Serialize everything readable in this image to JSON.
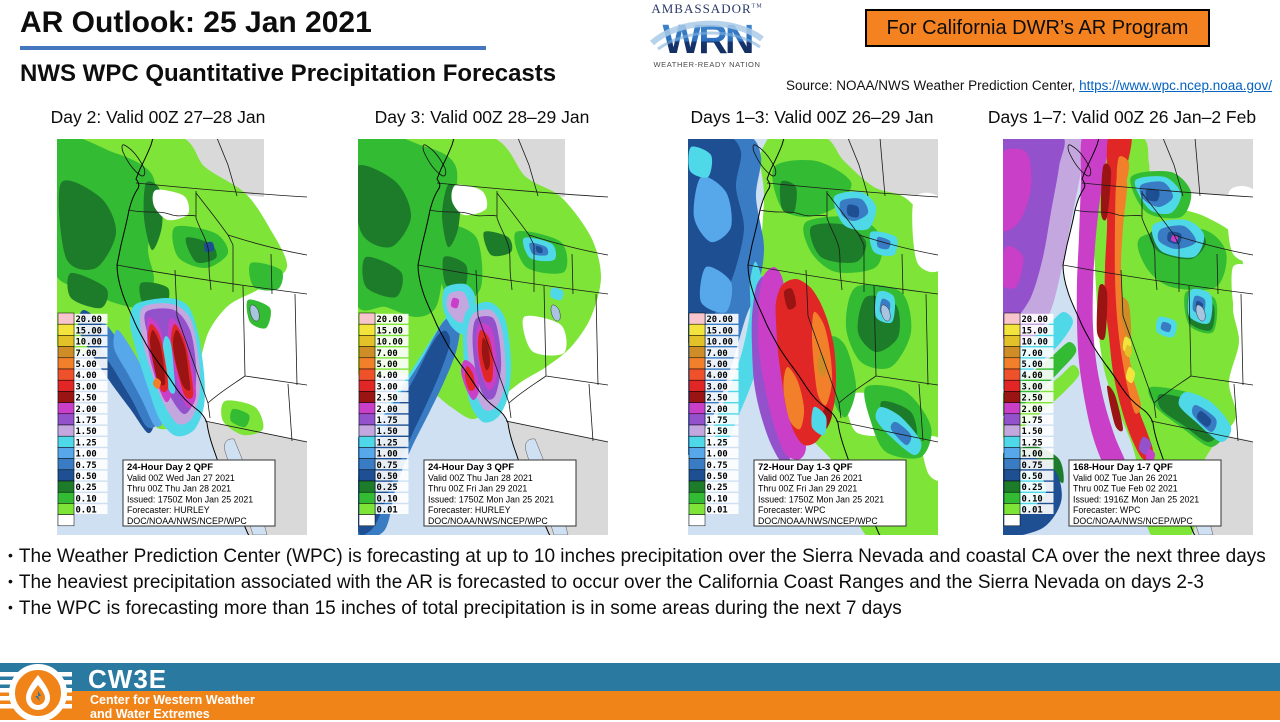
{
  "slide": {
    "title": "AR Outlook: 25 Jan 2021",
    "subtitle": "NWS WPC Quantitative Precipitation Forecasts",
    "badge": "For California DWR’s AR Program",
    "source_prefix": "Source: NOAA/NWS Weather Prediction Center, ",
    "source_link": "https://www.wpc.ncep.noaa.gov/",
    "accent_underline": "#4577BE",
    "badge_bg": "#F58220"
  },
  "wrn_logo": {
    "top": "AMBASSADOR",
    "tm": "TM",
    "mark": "WRN",
    "bottom": "WEATHER-READY NATION"
  },
  "panels": [
    {
      "label": "Day 2: Valid 00Z 27–28 Jan",
      "info": [
        "24-Hour Day 2 QPF",
        "Valid 00Z Wed Jan 27 2021",
        "Thru 00Z Thu Jan 28 2021",
        "Issued: 1750Z Mon Jan 25 2021",
        "Forecaster: HURLEY",
        "DOC/NOAA/NWS/NCEP/WPC"
      ]
    },
    {
      "label": "Day 3: Valid 00Z 28–29 Jan",
      "info": [
        "24-Hour Day 3 QPF",
        "Valid 00Z Thu Jan 28 2021",
        "Thru 00Z Fri Jan 29 2021",
        "Issued: 1750Z Mon Jan 25 2021",
        "Forecaster: HURLEY",
        "DOC/NOAA/NWS/NCEP/WPC"
      ]
    },
    {
      "label": "Days 1–3: Valid 00Z 26–29 Jan",
      "info": [
        "72-Hour Day 1-3 QPF",
        "Valid 00Z Tue Jan 26 2021",
        "Thru 00Z Fri Jan 29 2021",
        "Issued: 1750Z Mon Jan 25 2021",
        "Forecaster: WPC",
        "DOC/NOAA/NWS/NCEP/WPC"
      ]
    },
    {
      "label": "Days 1–7: Valid 00Z 26 Jan–2 Feb",
      "info": [
        "168-Hour Day 1-7 QPF",
        "Valid 00Z Tue Jan 26 2021",
        "Thru 00Z Tue Feb 02 2021",
        "Issued: 1916Z Mon Jan 25 2021",
        "Forecaster: WPC",
        "DOC/NOAA/NWS/NCEP/WPC"
      ]
    }
  ],
  "legend": {
    "values": [
      "20.00",
      "15.00",
      "10.00",
      "7.00",
      "5.00",
      "4.00",
      "3.00",
      "2.50",
      "2.00",
      "1.75",
      "1.50",
      "1.25",
      "1.00",
      "0.75",
      "0.50",
      "0.25",
      "0.10",
      "0.01"
    ],
    "colors": [
      "#F7C5CB",
      "#F2E43C",
      "#E2C228",
      "#CE8D26",
      "#F2802A",
      "#EF512B",
      "#E12626",
      "#9B1414",
      "#CA3FC8",
      "#9351CC",
      "#C5A7E0",
      "#4FD8E8",
      "#56A8EA",
      "#3A7CC4",
      "#1D4F92",
      "#1D7C2A",
      "#33BB33",
      "#7EE437"
    ],
    "below_color": "#FFFFFF"
  },
  "bullets": [
    "The Weather Prediction Center (WPC) is forecasting at up to 10 inches precipitation over the Sierra Nevada and coastal CA over the next three days",
    "The heaviest precipitation associated with the AR is forecasted to occur over the California Coast Ranges and the Sierra Nevada on days 2-3",
    "The WPC is forecasting more than 15 inches of total precipitation is in some areas during the next 7 days"
  ],
  "footer": {
    "org": "CW3E",
    "tagline1": "Center for Western Weather",
    "tagline2": "and Water Extremes",
    "blue": "#2979A0",
    "orange": "#F08419"
  }
}
